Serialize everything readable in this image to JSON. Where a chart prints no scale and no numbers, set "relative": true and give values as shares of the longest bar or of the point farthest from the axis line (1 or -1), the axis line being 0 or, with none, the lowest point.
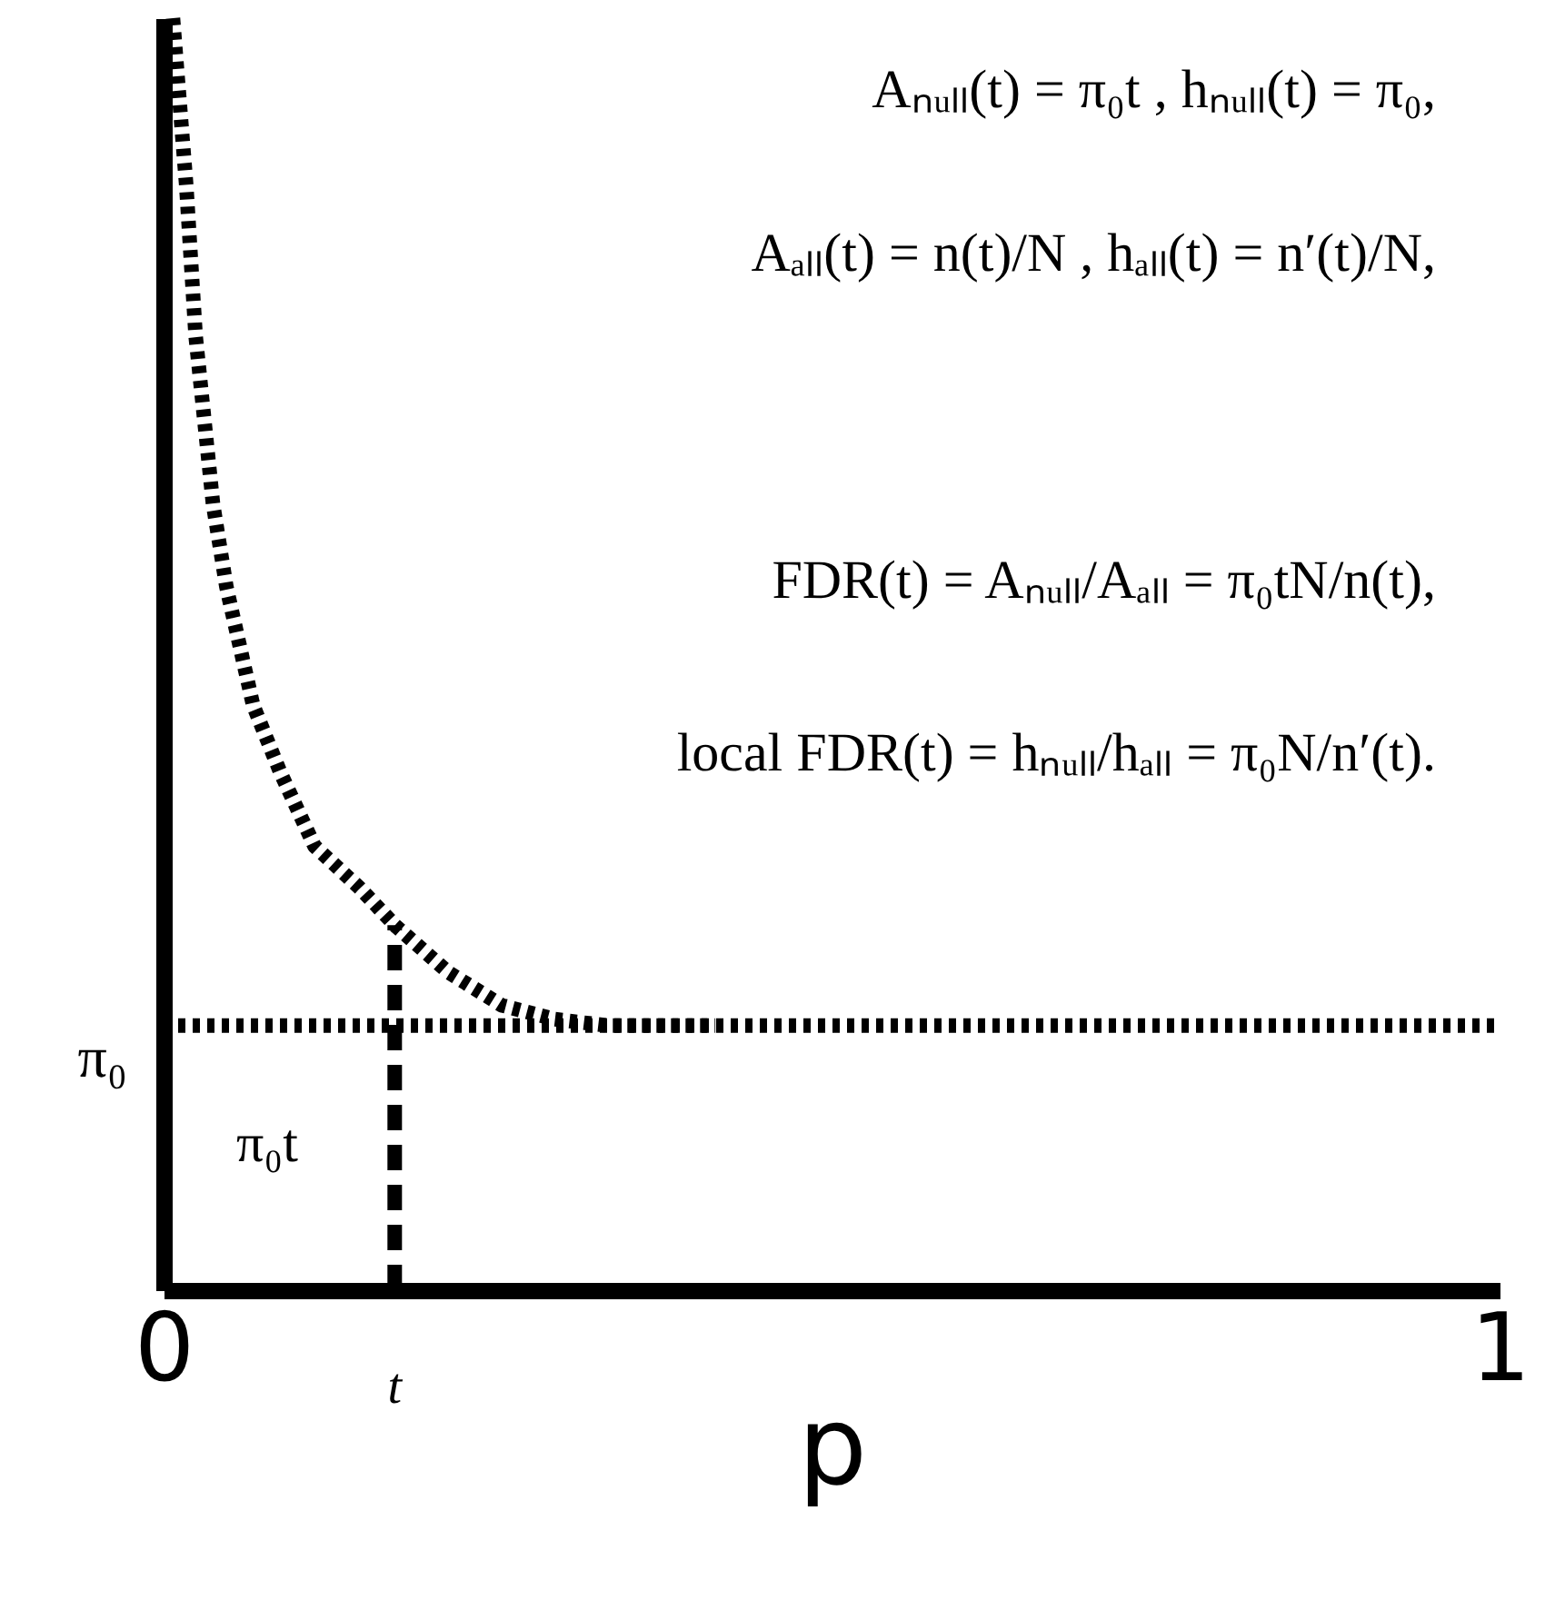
{
  "chart_data": {
    "type": "line",
    "relative": true,
    "xlabel": "p",
    "xlim": [
      0,
      1
    ],
    "xticks": [
      0,
      1
    ],
    "series": [
      {
        "color": "#000000",
        "line_style": "dotted",
        "x": [
          0.007,
          0.017,
          0.024,
          0.037,
          0.047,
          0.067,
          0.087,
          0.113,
          0.147,
          0.173,
          0.213,
          0.253,
          0.293,
          0.333,
          0.413
        ],
        "values": [
          1.0,
          0.868,
          0.75,
          0.618,
          0.553,
          0.46,
          0.408,
          0.349,
          0.316,
          0.287,
          0.25,
          0.224,
          0.213,
          0.208,
          0.208
        ]
      }
    ],
    "ref_lines": [
      {
        "axis": "y",
        "value": 0.208,
        "label": "π₀",
        "color": "#000000",
        "line_style": "dotted"
      },
      {
        "axis": "x",
        "value": 0.173,
        "label": "t",
        "color": "#000000",
        "line_style": "dashed"
      }
    ],
    "annotations": [
      "Aₙᵤₗₗ(t) = π₀t ,     hₙᵤₗₗ(t) = π₀,",
      "Aₐₗₗ(t) = n(t)/N ,     hₐₗₗ(t) = n′(t)/N,",
      "FDR(t) = Aₙᵤₗₗ/Aₐₗₗ = π₀tN/n(t),",
      "local FDR(t) = hₙᵤₗₗ/hₐₗₗ = π₀N/n′(t).",
      "π₀t"
    ],
    "grid": false
  }
}
